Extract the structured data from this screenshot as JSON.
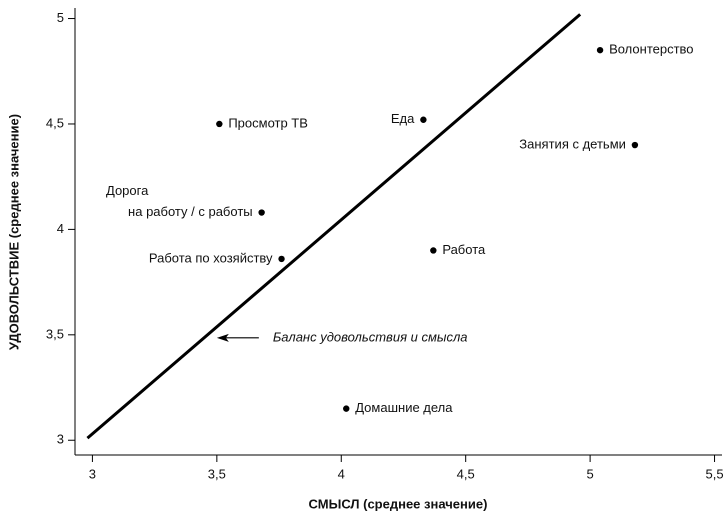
{
  "chart_data": {
    "type": "scatter",
    "xlabel": "СМЫСЛ (среднее значение)",
    "ylabel": "УДОВОЛЬСТВИЕ (среднее значение)",
    "labels": [
      "Волонтерство",
      "Просмотр ТВ",
      "Еда",
      "Занятия с детьми",
      [
        "Дорога",
        "на работу / с работы"
      ],
      "Работа по хозяйству",
      "Работа",
      "Домашние дела"
    ],
    "x": [
      5.04,
      3.51,
      4.33,
      5.18,
      3.68,
      3.76,
      4.37,
      4.02
    ],
    "values": [
      4.85,
      4.5,
      4.52,
      4.4,
      4.08,
      3.86,
      3.9,
      3.15
    ],
    "color": "#000000",
    "line": {
      "x": [
        2.98,
        4.96
      ],
      "values": [
        3.01,
        5.02
      ]
    },
    "annotation": "Баланс удовольствия и смысла",
    "xlim": [
      2.93,
      5.53
    ],
    "ylim": [
      2.93,
      5.05
    ],
    "xticks": [
      3,
      {
        "value": 3.5,
        "label": "3,5"
      },
      4,
      {
        "value": 4.5,
        "label": "4,5"
      },
      5,
      {
        "value": 5.5,
        "label": "5,5"
      }
    ],
    "yticks": [
      3,
      {
        "value": 3.5,
        "label": "3,5"
      },
      4,
      {
        "value": 4.5,
        "label": "4,5"
      },
      5
    ],
    "grid": false
  }
}
